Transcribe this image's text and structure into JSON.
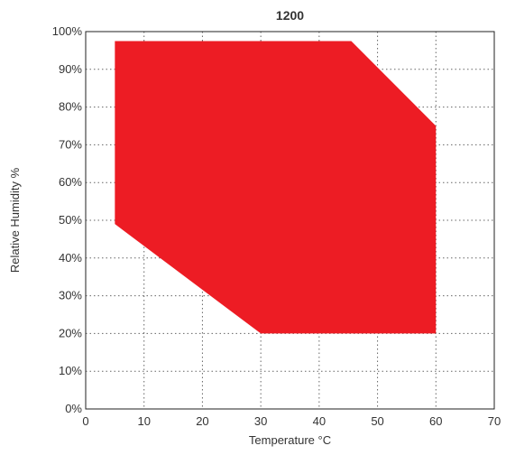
{
  "chart_data": {
    "type": "area",
    "title": "1200",
    "xlabel": "Temperature °C",
    "ylabel": "Relative Humidity %",
    "xlim": [
      0,
      70
    ],
    "ylim": [
      0,
      100
    ],
    "x_ticks": [
      0,
      10,
      20,
      30,
      40,
      50,
      60,
      70
    ],
    "y_ticks": [
      0,
      10,
      20,
      30,
      40,
      50,
      60,
      70,
      80,
      90,
      100
    ],
    "x_tick_labels": [
      "0",
      "10",
      "20",
      "30",
      "40",
      "50",
      "60",
      "70"
    ],
    "y_tick_labels": [
      "0%",
      "10%",
      "20%",
      "30%",
      "40%",
      "50%",
      "60%",
      "70%",
      "80%",
      "90%",
      "100%"
    ],
    "grid": true,
    "series": [
      {
        "color": "#ED1C24",
        "polygon": [
          {
            "x": 5,
            "y": 97.5
          },
          {
            "x": 45.5,
            "y": 97.5
          },
          {
            "x": 60,
            "y": 75
          },
          {
            "x": 60,
            "y": 20
          },
          {
            "x": 30,
            "y": 20
          },
          {
            "x": 5,
            "y": 49
          }
        ]
      }
    ]
  }
}
